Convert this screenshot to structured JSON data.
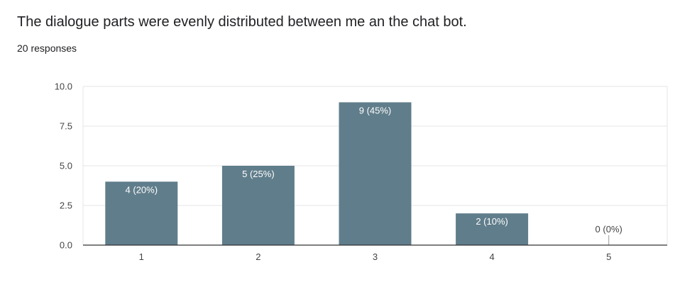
{
  "question": {
    "title": "The dialogue parts were evenly distributed between me an the chat bot.",
    "responses": "20 responses"
  },
  "colors": {
    "bar": "#607d8b",
    "grid": "#e6e6e6",
    "axis": "#333333",
    "label_inside": "#ffffff",
    "label_outside": "#444444"
  },
  "chart_data": {
    "type": "bar",
    "categories": [
      "1",
      "2",
      "3",
      "4",
      "5"
    ],
    "values": [
      4,
      5,
      9,
      2,
      0
    ],
    "data_labels": [
      "4 (20%)",
      "5 (25%)",
      "9 (45%)",
      "2 (10%)",
      "0 (0%)"
    ],
    "yticks": [
      "0.0",
      "2.5",
      "5.0",
      "7.5",
      "10.0"
    ],
    "ylim": [
      0,
      10
    ],
    "grid": true,
    "legend": "none"
  }
}
